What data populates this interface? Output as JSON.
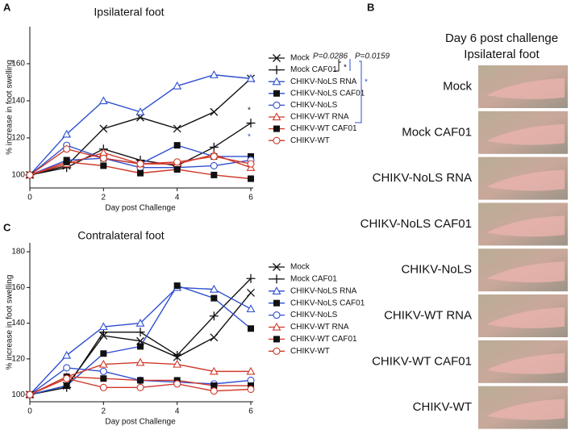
{
  "panel_labels": [
    "A",
    "B",
    "C"
  ],
  "chart_data": [
    {
      "type": "line",
      "title": "Ipsilateral foot",
      "x_label": "Day post Challenge",
      "y_label": "% increase in foot swelling",
      "x": [
        0,
        1,
        2,
        3,
        4,
        5,
        6
      ],
      "xlim": [
        0,
        6
      ],
      "xticks": [
        0,
        2,
        4,
        6
      ],
      "ylim": [
        93,
        180
      ],
      "yticks": [
        100,
        120,
        140,
        160
      ],
      "series": [
        {
          "name": "Mock",
          "color": "#111111",
          "marker": "x",
          "values": [
            100,
            105,
            125,
            131,
            125,
            134,
            152
          ]
        },
        {
          "name": "Mock CAF01",
          "color": "#111111",
          "marker": "plus",
          "values": [
            100,
            104,
            114,
            108,
            105,
            115,
            128
          ]
        },
        {
          "name": "CHIKV-NoLS RNA",
          "color": "#2f4fd0",
          "marker": "triangle",
          "values": [
            100,
            122,
            140,
            134,
            148,
            154,
            152
          ]
        },
        {
          "name": "CHIKV-NoLS CAF01",
          "color": "#2f4fd0",
          "marker": "square",
          "values": [
            100,
            108,
            109,
            106,
            116,
            110,
            110
          ]
        },
        {
          "name": "CHIKV-NoLS",
          "color": "#2f4fd0",
          "marker": "circle",
          "values": [
            100,
            116,
            109,
            104,
            104,
            105,
            108
          ]
        },
        {
          "name": "CHIKV-WT RNA",
          "color": "#d0382a",
          "marker": "triangle",
          "values": [
            100,
            106,
            112,
            106,
            106,
            111,
            104
          ]
        },
        {
          "name": "CHIKV-WT CAF01",
          "color": "#d0382a",
          "marker": "square",
          "values": [
            100,
            107,
            105,
            101,
            103,
            100,
            98
          ]
        },
        {
          "name": "CHIKV-WT",
          "color": "#d0382a",
          "marker": "circle",
          "values": [
            100,
            114,
            109,
            106,
            107,
            110,
            106
          ]
        }
      ],
      "annotations": [
        "P=0.0286",
        "P=0.0159",
        "*",
        "*",
        "*",
        "*"
      ]
    },
    {
      "type": "line",
      "title": "Contralateral foot",
      "x_label": "Day post Challenge",
      "y_label": "% increase in foot swelling",
      "x": [
        0,
        1,
        2,
        3,
        4,
        5,
        6
      ],
      "xlim": [
        0,
        6
      ],
      "xticks": [
        0,
        2,
        4,
        6
      ],
      "ylim": [
        96,
        185
      ],
      "yticks": [
        100,
        120,
        140,
        160,
        180
      ],
      "series": [
        {
          "name": "Mock",
          "color": "#111111",
          "marker": "x",
          "values": [
            100,
            105,
            133,
            130,
            121,
            132,
            157
          ]
        },
        {
          "name": "Mock CAF01",
          "color": "#111111",
          "marker": "plus",
          "values": [
            100,
            104,
            135,
            135,
            122,
            144,
            165
          ]
        },
        {
          "name": "CHIKV-NoLS RNA",
          "color": "#2f4fd0",
          "marker": "triangle",
          "values": [
            100,
            122,
            138,
            140,
            160,
            159,
            148
          ]
        },
        {
          "name": "CHIKV-NoLS CAF01",
          "color": "#2f4fd0",
          "marker": "square",
          "values": [
            100,
            105,
            123,
            127,
            161,
            154,
            137
          ]
        },
        {
          "name": "CHIKV-NoLS",
          "color": "#2f4fd0",
          "marker": "circle",
          "values": [
            100,
            115,
            113,
            108,
            107,
            106,
            108
          ]
        },
        {
          "name": "CHIKV-WT RNA",
          "color": "#d0382a",
          "marker": "triangle",
          "values": [
            100,
            110,
            117,
            118,
            117,
            113,
            113
          ]
        },
        {
          "name": "CHIKV-WT CAF01",
          "color": "#d0382a",
          "marker": "square",
          "values": [
            100,
            110,
            109,
            108,
            108,
            105,
            105
          ]
        },
        {
          "name": "CHIKV-WT",
          "color": "#d0382a",
          "marker": "circle",
          "values": [
            100,
            109,
            104,
            104,
            106,
            102,
            103
          ]
        }
      ]
    }
  ],
  "photo_panel": {
    "title": [
      "Day 6 post challenge",
      "Ipsilateral foot"
    ],
    "labels": [
      "Mock",
      "Mock CAF01",
      "CHIKV-NoLS RNA",
      "CHIKV-NoLS CAF01",
      "CHIKV-NoLS",
      "CHIKV-WT RNA",
      "CHIKV-WT CAF01",
      "CHIKV-WT"
    ]
  }
}
